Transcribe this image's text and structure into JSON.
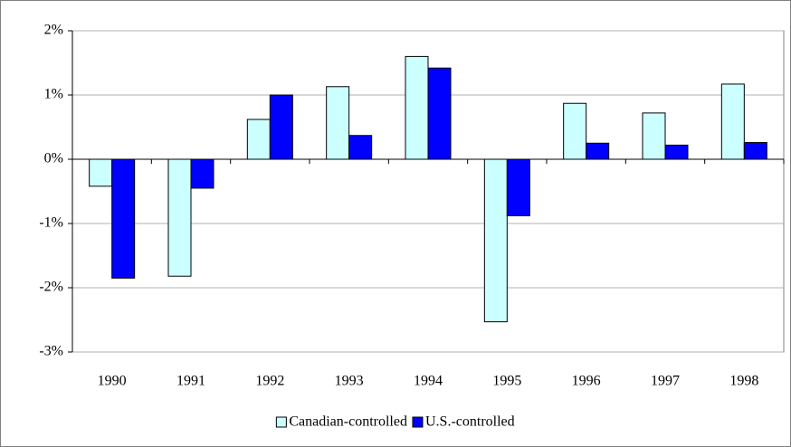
{
  "chart_data": {
    "type": "bar",
    "categories": [
      "1990",
      "1991",
      "1992",
      "1993",
      "1994",
      "1995",
      "1996",
      "1997",
      "1998"
    ],
    "series": [
      {
        "name": "Canadian-controlled",
        "color": "#ccffff",
        "values": [
          -0.42,
          -1.82,
          0.62,
          1.13,
          1.6,
          -2.53,
          0.87,
          0.72,
          1.17
        ]
      },
      {
        "name": "U.S.-controlled",
        "color": "#0000ff",
        "values": [
          -1.85,
          -0.45,
          1.0,
          0.37,
          1.42,
          -0.88,
          0.25,
          0.22,
          0.26
        ]
      }
    ],
    "ylim": [
      -3,
      2
    ],
    "yticks": [
      {
        "value": -3,
        "label": "-3%"
      },
      {
        "value": -2,
        "label": "-2%"
      },
      {
        "value": -1,
        "label": "-1%"
      },
      {
        "value": 0,
        "label": "0%"
      },
      {
        "value": 1,
        "label": "1%"
      },
      {
        "value": 2,
        "label": "2%"
      }
    ],
    "grid": true,
    "legend": "bottom"
  }
}
